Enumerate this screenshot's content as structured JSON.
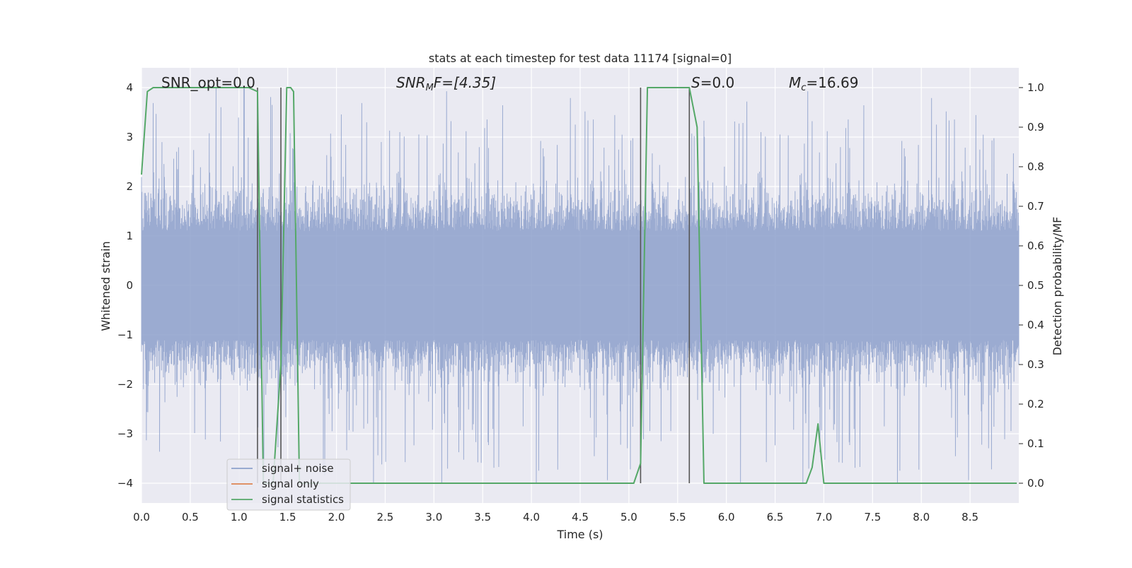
{
  "chart_data": {
    "type": "line",
    "title": "stats at each timestep for test data 11174 [signal=0]",
    "xlabel": "Time (s)",
    "ylabel": "Whitened strain",
    "y2label": "Detection probability/MF",
    "xlim": [
      0.0,
      9.0
    ],
    "ylim": [
      -4.4,
      4.4
    ],
    "y2lim": [
      -0.05,
      1.05
    ],
    "xticks": [
      "0.0",
      "0.5",
      "1.0",
      "1.5",
      "2.0",
      "2.5",
      "3.0",
      "3.5",
      "4.0",
      "4.5",
      "5.0",
      "5.5",
      "6.0",
      "6.5",
      "7.0",
      "7.5",
      "8.0",
      "8.5"
    ],
    "yticks": [
      "−4",
      "−3",
      "−2",
      "−1",
      "0",
      "1",
      "2",
      "3",
      "4"
    ],
    "y2ticks": [
      "0.0",
      "0.1",
      "0.2",
      "0.3",
      "0.4",
      "0.5",
      "0.6",
      "0.7",
      "0.8",
      "0.9",
      "1.0"
    ],
    "annotations": {
      "snr_opt": "SNR_opt=0.0",
      "snr_mf_main": "SNR",
      "snr_mf_sub": "M",
      "snr_mf_tail": "F=[4.35]",
      "s_label": "S",
      "s_tail": "=0.0",
      "mc_main": "M",
      "mc_sub": "c",
      "mc_tail": "=16.69"
    },
    "grid": true,
    "legend_position": "lower-left",
    "legend": [
      "signal+ noise",
      "signal only",
      "signal statistics"
    ],
    "colors": {
      "noise": "#8da0cb",
      "signal": "#dd8452",
      "stats": "#55a868",
      "vlines": "#555555",
      "axes_bg": "#eaeaf2"
    },
    "noise_envelope": {
      "typical_peak": 2.2,
      "max_peak": 4.0,
      "min_trough": -4.0
    },
    "signal_only": [
      [
        0.0,
        0.0
      ],
      [
        9.0,
        0.0
      ]
    ],
    "vertical_lines": [
      {
        "x": 1.19,
        "y_range": [
          -4.0,
          4.0
        ]
      },
      {
        "x": 1.43,
        "y_range": [
          -4.0,
          4.0
        ]
      },
      {
        "x": 5.12,
        "y_range": [
          -4.0,
          4.0
        ]
      },
      {
        "x": 5.62,
        "y_range": [
          -4.0,
          4.0
        ]
      }
    ],
    "statistics": [
      [
        0.0,
        0.78
      ],
      [
        0.06,
        0.99
      ],
      [
        0.12,
        1.0
      ],
      [
        0.3,
        1.0
      ],
      [
        0.6,
        1.0
      ],
      [
        0.9,
        1.0
      ],
      [
        1.1,
        1.0
      ],
      [
        1.19,
        0.99
      ],
      [
        1.25,
        0.0
      ],
      [
        1.35,
        0.0
      ],
      [
        1.43,
        0.3
      ],
      [
        1.49,
        1.0
      ],
      [
        1.53,
        1.0
      ],
      [
        1.56,
        0.99
      ],
      [
        1.62,
        0.0
      ],
      [
        1.7,
        0.0
      ],
      [
        2.0,
        0.0
      ],
      [
        3.0,
        0.0
      ],
      [
        4.0,
        0.0
      ],
      [
        5.05,
        0.0
      ],
      [
        5.12,
        0.05
      ],
      [
        5.19,
        1.0
      ],
      [
        5.25,
        1.0
      ],
      [
        5.4,
        1.0
      ],
      [
        5.6,
        1.0
      ],
      [
        5.62,
        1.0
      ],
      [
        5.7,
        0.9
      ],
      [
        5.77,
        0.0
      ],
      [
        5.83,
        0.0
      ],
      [
        6.5,
        0.0
      ],
      [
        6.82,
        0.0
      ],
      [
        6.88,
        0.04
      ],
      [
        6.94,
        0.15
      ],
      [
        7.0,
        0.0
      ],
      [
        7.5,
        0.0
      ],
      [
        8.5,
        0.0
      ],
      [
        8.98,
        0.0
      ]
    ]
  }
}
